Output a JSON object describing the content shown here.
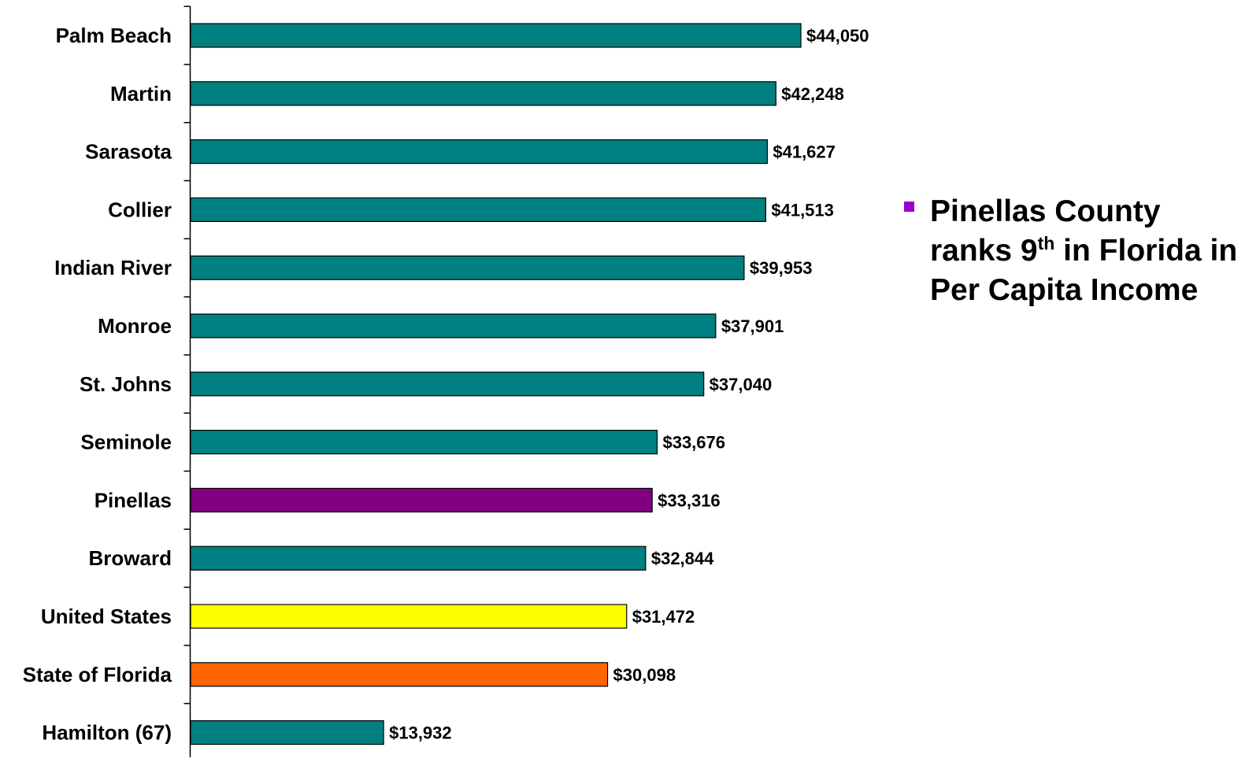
{
  "chart_data": {
    "type": "bar",
    "orientation": "horizontal",
    "categories": [
      "Palm Beach",
      "Martin",
      "Sarasota",
      "Collier",
      "Indian River",
      "Monroe",
      "St. Johns",
      "Seminole",
      "Pinellas",
      "Broward",
      "United States",
      "State of Florida",
      "Hamilton (67)"
    ],
    "values": [
      44050,
      42248,
      41627,
      41513,
      39953,
      37901,
      37040,
      33676,
      33316,
      32844,
      31472,
      30098,
      13932
    ],
    "value_labels": [
      "$44,050",
      "$42,248",
      "$41,627",
      "$41,513",
      "$39,953",
      "$37,901",
      "$37,040",
      "$33,676",
      "$33,316",
      "$32,844",
      "$31,472",
      "$30,098",
      "$13,932"
    ],
    "bar_colors": [
      "#008080",
      "#008080",
      "#008080",
      "#008080",
      "#008080",
      "#008080",
      "#008080",
      "#008080",
      "#800080",
      "#008080",
      "#FFFF00",
      "#FF6600",
      "#008080"
    ],
    "xlim": [
      0,
      44050
    ],
    "title": "",
    "xlabel": "",
    "ylabel": "",
    "grid": false,
    "legend": "none"
  },
  "callout": {
    "bullet_color": "#9900CC",
    "text_before": "Pinellas County ranks 9",
    "superscript": "th",
    "text_after": " in Florida in Per Capita Income"
  }
}
